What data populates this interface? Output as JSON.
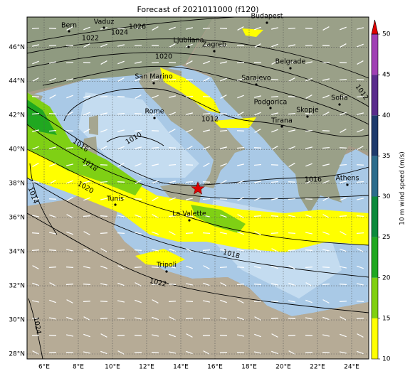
{
  "title": "Forecast of 2021011000 (f120)",
  "lon_labels": [
    "6°E",
    "8°E",
    "10°E",
    "12°E",
    "14°E",
    "16°E",
    "18°E",
    "20°E",
    "22°E",
    "24°E"
  ],
  "lat_labels": [
    "28°N",
    "30°N",
    "32°N",
    "34°N",
    "36°N",
    "38°N",
    "40°N",
    "42°N",
    "44°N",
    "46°N"
  ],
  "cities": [
    "Bern",
    "Vaduz",
    "Budapest",
    "Ljubliana",
    "Zagreb",
    "Belgrade",
    "San Marino",
    "Sarajevo",
    "Sofia",
    "Podgorica",
    "Skopje",
    "Rome",
    "Tirana",
    "Tunis",
    "Athens",
    "La Valette",
    "Tripoli"
  ],
  "isobar_labels": [
    "1022",
    "1024",
    "1026",
    "1020",
    "1012",
    "1010",
    "1016",
    "1018",
    "1020",
    "1014",
    "1018",
    "1022",
    "1024",
    "1016",
    "1012"
  ],
  "colorbar": {
    "label": "10 m wind speed (m/s)",
    "ticks": [
      10,
      15,
      20,
      25,
      30,
      35,
      40,
      45,
      50
    ],
    "colors": [
      "#ffff00",
      "#80d010",
      "#20a820",
      "#0c8a3c",
      "#2c6c8c",
      "#1e3a6c",
      "#5a2c8c",
      "#a040b4"
    ],
    "extend_color": "#e00000"
  }
}
